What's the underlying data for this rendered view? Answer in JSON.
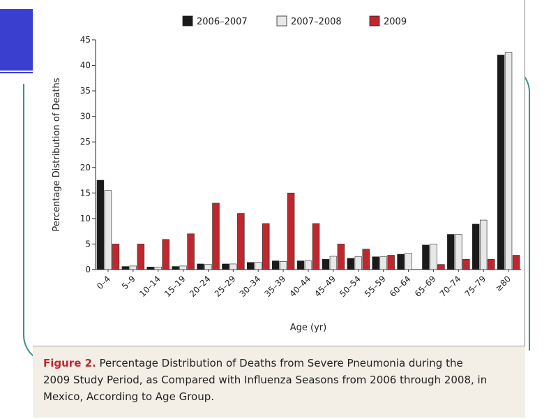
{
  "chart_data": {
    "type": "bar",
    "title": "",
    "xlabel": "Age (yr)",
    "ylabel": "Percentage Distribution of Deaths",
    "ylim": [
      0,
      45
    ],
    "yticks": [
      0,
      5,
      10,
      15,
      20,
      25,
      30,
      35,
      40,
      45
    ],
    "categories": [
      "0–4",
      "5–9",
      "10–14",
      "15–19",
      "20–24",
      "25–29",
      "30–34",
      "35–39",
      "40–44",
      "45–49",
      "50–54",
      "55–59",
      "60–64",
      "65–69",
      "70–74",
      "75–79",
      "≥80"
    ],
    "series": [
      {
        "name": "2006–2007",
        "color": "#1a1a1a",
        "values": [
          17.5,
          0.6,
          0.5,
          0.6,
          1.1,
          1.1,
          1.4,
          1.7,
          1.7,
          2.0,
          2.2,
          2.5,
          3.0,
          4.8,
          6.9,
          8.9,
          42.0
        ]
      },
      {
        "name": "2007–2008",
        "color": "#e8e8e8",
        "values": [
          15.5,
          0.7,
          0.5,
          0.7,
          1.0,
          1.1,
          1.4,
          1.6,
          1.7,
          2.6,
          2.5,
          2.5,
          3.2,
          5.0,
          6.9,
          9.7,
          42.5
        ]
      },
      {
        "name": "2009",
        "color": "#c0272d",
        "values": [
          5.0,
          5.0,
          5.9,
          7.0,
          13.0,
          11.0,
          9.0,
          15.0,
          9.0,
          5.0,
          4.0,
          2.8,
          0.0,
          1.0,
          2.0,
          2.0,
          2.8
        ]
      }
    ],
    "legend_position": "top"
  },
  "caption": {
    "label": "Figure 2.",
    "text": "Percentage Distribution of Deaths from Severe Pneumonia during the 2009 Study Period, as Compared with Influenza Seasons from 2006 through 2008, in Mexico, According to Age Group."
  }
}
